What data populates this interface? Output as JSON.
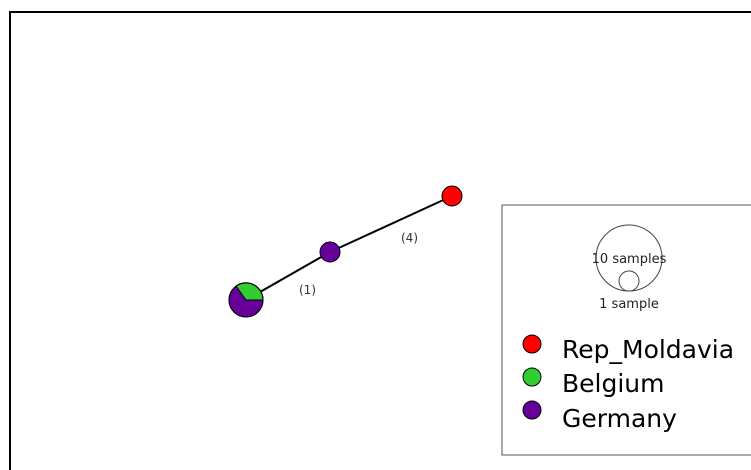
{
  "network": {
    "nodes": [
      {
        "id": "node-mixed",
        "samples": 4,
        "composition": [
          {
            "population": "Germany",
            "count": 3
          },
          {
            "population": "Belgium",
            "count": 1
          }
        ]
      },
      {
        "id": "node-germany",
        "samples": 1,
        "composition": [
          {
            "population": "Germany",
            "count": 1
          }
        ]
      },
      {
        "id": "node-moldavia",
        "samples": 1,
        "composition": [
          {
            "population": "Rep_Moldavia",
            "count": 1
          }
        ]
      }
    ],
    "edges": [
      {
        "from": "node-mixed",
        "to": "node-germany",
        "mutations": 1,
        "label": "(1)"
      },
      {
        "from": "node-germany",
        "to": "node-moldavia",
        "mutations": 4,
        "label": "(4)"
      }
    ]
  },
  "legend": {
    "size_scale": {
      "large_label": "10 samples",
      "small_label": "1 sample"
    },
    "populations": [
      {
        "name": "Rep_Moldavia",
        "color": "#ff0000"
      },
      {
        "name": "Belgium",
        "color": "#33cc33"
      },
      {
        "name": "Germany",
        "color": "#660099"
      }
    ]
  },
  "colors": {
    "Rep_Moldavia": "#ff0000",
    "Belgium": "#33cc33",
    "Germany": "#660099"
  }
}
